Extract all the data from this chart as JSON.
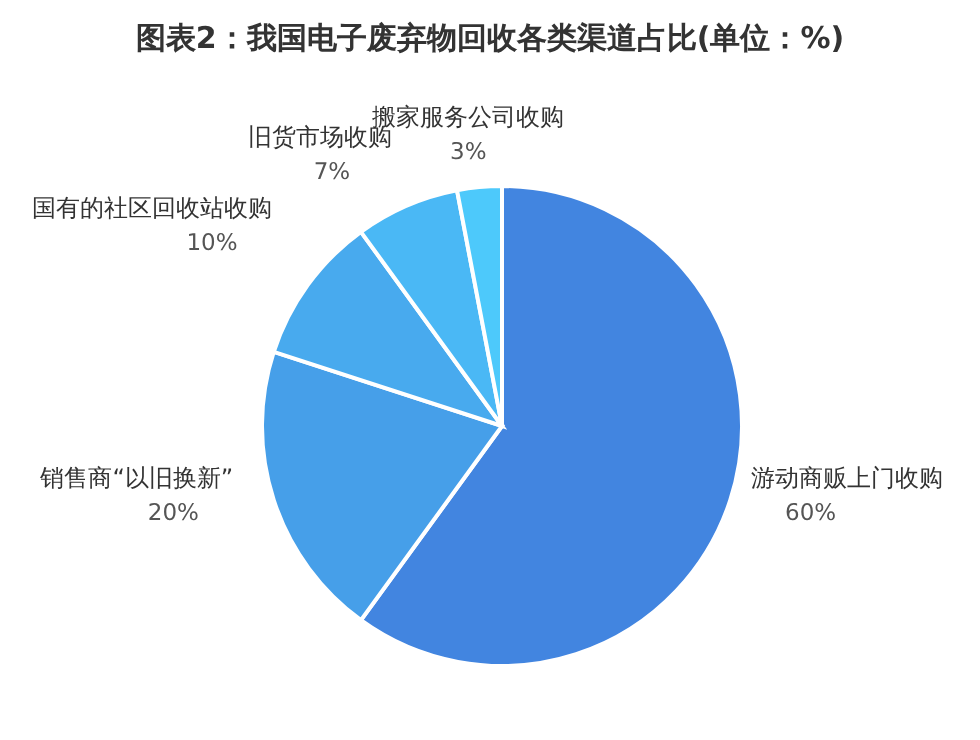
{
  "chart_data": {
    "type": "pie",
    "title": "图表2：我国电子废弃物回收各类渠道占比(单位：%)",
    "categories": [
      "游动商贩上门收购",
      "销售商“以旧换新”",
      "国有的社区回收站收购",
      "旧货市场收购",
      "搬家服务公司收购"
    ],
    "values": [
      60,
      20,
      10,
      7,
      3
    ],
    "value_labels": [
      "60%",
      "20%",
      "10%",
      "7%",
      "3%"
    ],
    "colors": [
      "#4285e0",
      "#469fe9",
      "#48aaee",
      "#4ab8f5",
      "#4dc9fb"
    ],
    "legend": false
  }
}
